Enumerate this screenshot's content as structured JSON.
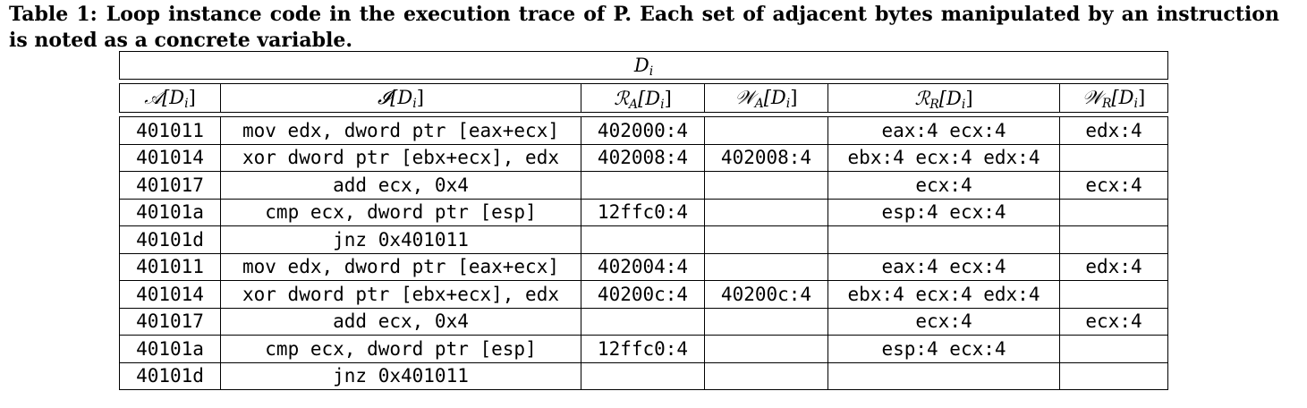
{
  "caption": {
    "label": "Table 1:",
    "text": "Loop instance code in the execution trace of P. Each set of adjacent bytes manipulated by an instruction is noted as a concrete variable."
  },
  "table": {
    "top_header": {
      "symbol": "D",
      "sub": "i"
    },
    "columns": [
      {
        "sym": "𝒜",
        "sub": "",
        "arg": "[D",
        "argsub": "i",
        "close": "]"
      },
      {
        "sym": "𝓘",
        "sub": "",
        "arg": "[D",
        "argsub": "i",
        "close": "]"
      },
      {
        "sym": "ℛ",
        "sub": "A",
        "arg": "[D",
        "argsub": "i",
        "close": "]"
      },
      {
        "sym": "𝒲",
        "sub": "A",
        "arg": "[D",
        "argsub": "i",
        "close": "]"
      },
      {
        "sym": "ℛ",
        "sub": "R",
        "arg": "[D",
        "argsub": "i",
        "close": "]"
      },
      {
        "sym": "𝒲",
        "sub": "R",
        "arg": "[D",
        "argsub": "i",
        "close": "]"
      }
    ],
    "rows": [
      {
        "addr": "401011",
        "instr": "mov edx, dword ptr [eax+ecx]",
        "ra": "402000:4",
        "wa": "",
        "rr": "eax:4 ecx:4",
        "wr": "edx:4"
      },
      {
        "addr": "401014",
        "instr": "xor dword ptr [ebx+ecx], edx",
        "ra": "402008:4",
        "wa": "402008:4",
        "rr": "ebx:4 ecx:4 edx:4",
        "wr": ""
      },
      {
        "addr": "401017",
        "instr": "add ecx, 0x4",
        "ra": "",
        "wa": "",
        "rr": "ecx:4",
        "wr": "ecx:4"
      },
      {
        "addr": "40101a",
        "instr": "cmp ecx, dword ptr [esp]",
        "ra": "12ffc0:4",
        "wa": "",
        "rr": "esp:4 ecx:4",
        "wr": ""
      },
      {
        "addr": "40101d",
        "instr": "jnz 0x401011",
        "ra": "",
        "wa": "",
        "rr": "",
        "wr": ""
      },
      {
        "addr": "401011",
        "instr": "mov edx, dword ptr [eax+ecx]",
        "ra": "402004:4",
        "wa": "",
        "rr": "eax:4 ecx:4",
        "wr": "edx:4"
      },
      {
        "addr": "401014",
        "instr": "xor dword ptr [ebx+ecx], edx",
        "ra": "40200c:4",
        "wa": "40200c:4",
        "rr": "ebx:4 ecx:4 edx:4",
        "wr": ""
      },
      {
        "addr": "401017",
        "instr": "add ecx, 0x4",
        "ra": "",
        "wa": "",
        "rr": "ecx:4",
        "wr": "ecx:4"
      },
      {
        "addr": "40101a",
        "instr": "cmp ecx, dword ptr [esp]",
        "ra": "12ffc0:4",
        "wa": "",
        "rr": "esp:4 ecx:4",
        "wr": ""
      },
      {
        "addr": "40101d",
        "instr": "jnz 0x401011",
        "ra": "",
        "wa": "",
        "rr": "",
        "wr": ""
      }
    ]
  }
}
